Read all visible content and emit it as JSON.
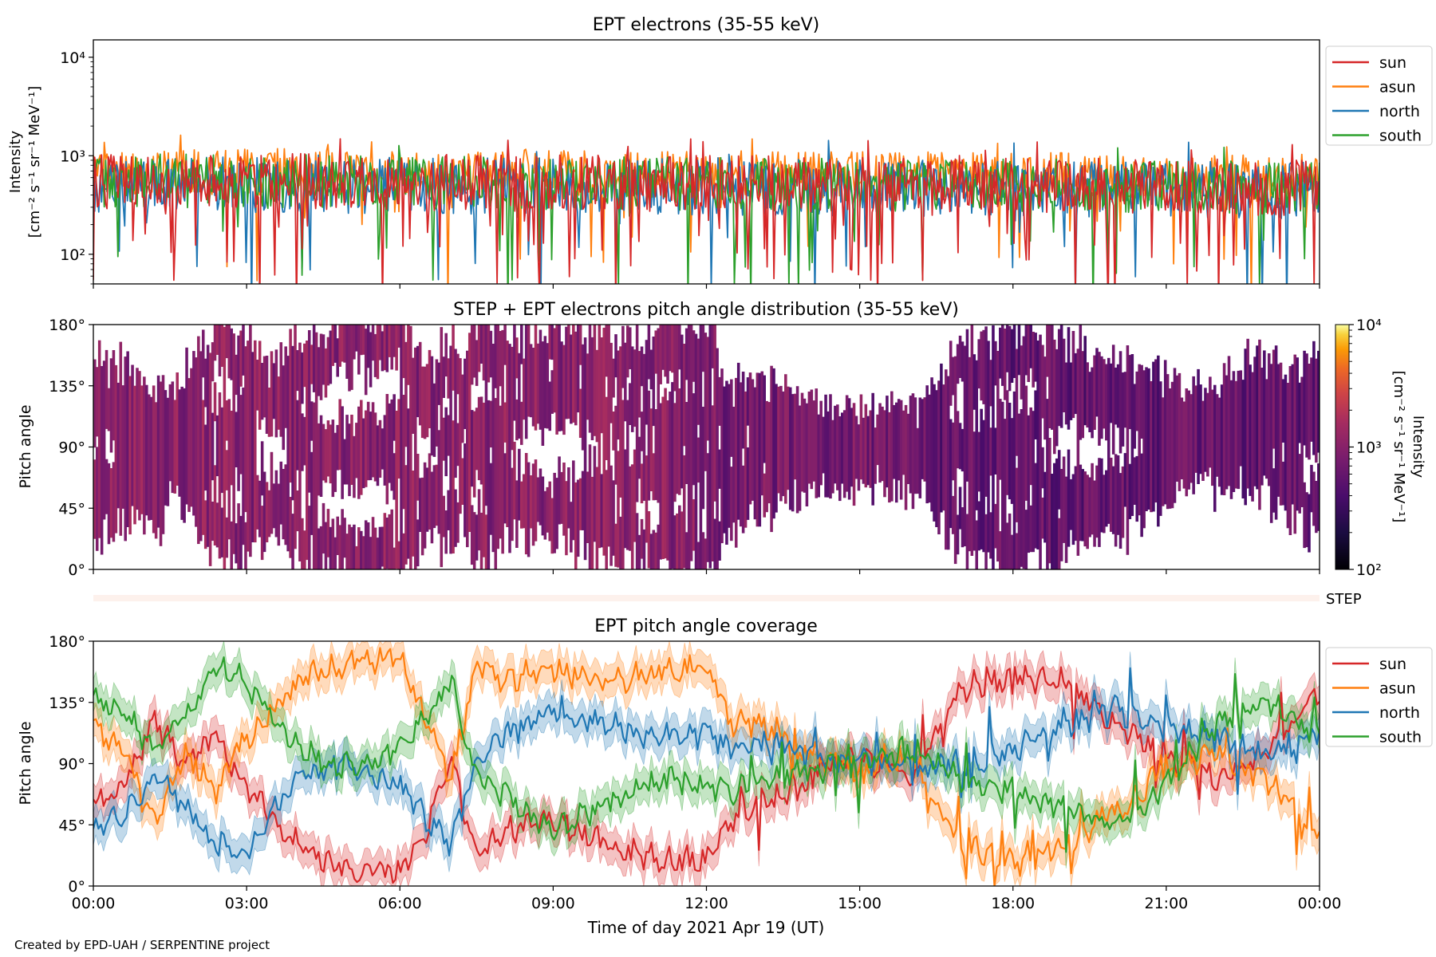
{
  "chart_data": [
    {
      "type": "line",
      "title": "EPT electrons (35-55 keV)",
      "ylabel_lines": [
        "Intensity",
        "[cm⁻² s⁻¹ sr⁻¹ MeV⁻¹]"
      ],
      "yscale": "log",
      "ylim": [
        50,
        15000
      ],
      "yticks": [
        {
          "value": 100,
          "label": "10²"
        },
        {
          "value": 1000,
          "label": "10³"
        },
        {
          "value": 10000,
          "label": "10⁴"
        }
      ],
      "xlim": [
        "2021-04-19 00:00",
        "2021-04-20 00:00"
      ],
      "legend_position": "outside-right-top",
      "series": [
        {
          "name": "sun",
          "color": "#d62728",
          "typical": 560,
          "spread": 0.18,
          "dips": 0.1
        },
        {
          "name": "asun",
          "color": "#ff7f0e",
          "typical": 700,
          "spread": 0.15,
          "dips": 0.03
        },
        {
          "name": "north",
          "color": "#1f77b4",
          "typical": 520,
          "spread": 0.18,
          "dips": 0.05
        },
        {
          "name": "south",
          "color": "#2ca02c",
          "typical": 560,
          "spread": 0.17,
          "dips": 0.05
        }
      ]
    },
    {
      "type": "heatmap",
      "title": "STEP + EPT electrons pitch angle distribution (35-55 keV)",
      "ylabel": "Pitch angle",
      "ylim": [
        0,
        180
      ],
      "yticks": [
        {
          "value": 0,
          "label": "0°"
        },
        {
          "value": 45,
          "label": "45°"
        },
        {
          "value": 90,
          "label": "90°"
        },
        {
          "value": 135,
          "label": "135°"
        },
        {
          "value": 180,
          "label": "180°"
        }
      ],
      "colormap": "inferno",
      "colorbar": {
        "scale": "log",
        "range": [
          100,
          10000
        ],
        "ticks": [
          {
            "value": 100,
            "label": "10²"
          },
          {
            "value": 1000,
            "label": "10³"
          },
          {
            "value": 10000,
            "label": "10⁴"
          }
        ],
        "label_lines": [
          "Intensity",
          "[cm⁻² s⁻¹ sr⁻¹ MeV⁻¹]"
        ]
      }
    },
    {
      "type": "strip",
      "label": "STEP",
      "color": "#fdf1ec"
    },
    {
      "type": "line",
      "title": "EPT pitch angle coverage",
      "ylabel": "Pitch angle",
      "ylim": [
        0,
        180
      ],
      "yticks": [
        {
          "value": 0,
          "label": "0°"
        },
        {
          "value": 45,
          "label": "45°"
        },
        {
          "value": 90,
          "label": "90°"
        },
        {
          "value": 135,
          "label": "135°"
        },
        {
          "value": 180,
          "label": "180°"
        }
      ],
      "xlabel": "Time of day 2021 Apr 19 (UT)",
      "xticks": [
        "00:00",
        "03:00",
        "06:00",
        "09:00",
        "12:00",
        "15:00",
        "18:00",
        "21:00",
        "00:00"
      ],
      "legend_position": "outside-right-top",
      "band_halfwidth_deg": 12,
      "series": [
        {
          "name": "sun",
          "color": "#d62728",
          "hours": [
            0,
            0.5,
            1.2,
            1.8,
            2.4,
            3,
            4,
            5,
            6,
            6.5,
            7,
            7.5,
            8,
            9,
            10,
            11,
            12,
            12.5,
            13,
            14,
            15,
            16,
            17,
            18,
            19,
            20,
            21,
            22,
            23,
            24
          ],
          "pitch": [
            60,
            70,
            120,
            90,
            110,
            75,
            30,
            12,
            10,
            40,
            100,
            20,
            40,
            50,
            30,
            20,
            18,
            50,
            60,
            80,
            95,
            80,
            145,
            155,
            150,
            120,
            95,
            80,
            100,
            140
          ]
        },
        {
          "name": "asun",
          "color": "#ff7f0e",
          "hours": [
            0,
            0.5,
            1.2,
            1.8,
            2.4,
            3,
            4,
            5,
            6,
            6.5,
            7,
            7.5,
            8,
            9,
            10,
            11,
            12,
            12.5,
            13,
            14,
            15,
            16,
            17,
            18,
            19,
            20,
            21,
            22,
            23,
            24
          ],
          "pitch": [
            115,
            105,
            45,
            100,
            70,
            110,
            150,
            165,
            170,
            125,
            80,
            165,
            150,
            160,
            150,
            158,
            162,
            120,
            120,
            100,
            85,
            95,
            30,
            20,
            30,
            55,
            85,
            100,
            75,
            40
          ]
        },
        {
          "name": "north",
          "color": "#1f77b4",
          "hours": [
            0,
            0.5,
            1.2,
            1.8,
            2.4,
            3,
            4,
            5,
            6,
            6.5,
            7,
            7.5,
            8,
            9,
            10,
            11,
            12,
            12.5,
            13,
            14,
            15,
            16,
            17,
            18,
            19,
            20,
            21,
            22,
            23,
            24
          ],
          "pitch": [
            45,
            50,
            80,
            60,
            30,
            25,
            80,
            90,
            75,
            50,
            30,
            95,
            110,
            130,
            118,
            110,
            112,
            100,
            110,
            95,
            92,
            85,
            90,
            100,
            120,
            130,
            115,
            110,
            95,
            110
          ]
        },
        {
          "name": "south",
          "color": "#2ca02c",
          "hours": [
            0,
            0.5,
            1.2,
            1.8,
            2.4,
            3,
            4,
            5,
            6,
            6.5,
            7,
            7.5,
            8,
            9,
            10,
            11,
            12,
            12.5,
            13,
            14,
            15,
            16,
            17,
            18,
            19,
            20,
            21,
            22,
            23,
            24
          ],
          "pitch": [
            135,
            130,
            100,
            125,
            160,
            150,
            100,
            88,
            100,
            125,
            150,
            80,
            70,
            40,
            60,
            78,
            75,
            70,
            80,
            85,
            90,
            100,
            80,
            70,
            55,
            45,
            75,
            120,
            135,
            110
          ]
        }
      ]
    }
  ],
  "footer": {
    "credit": "Created by EPD-UAH / SERPENTINE project"
  }
}
